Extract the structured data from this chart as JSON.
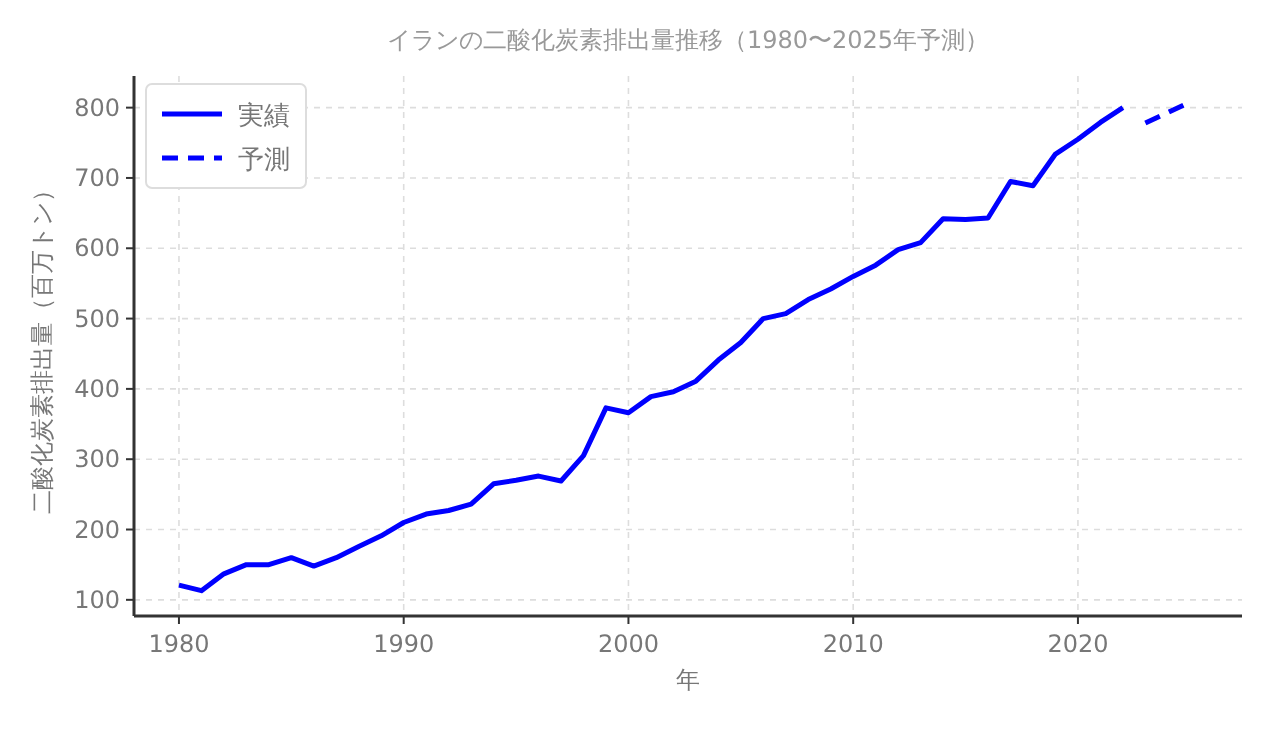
{
  "chart_data": {
    "type": "line",
    "title": "イランの二酸化炭素排出量推移（1980〜2025年予測）",
    "xlabel": "年",
    "ylabel": "二酸化炭素排出量（百万トン）",
    "series": [
      {
        "name": "実績",
        "color": "#0000ff",
        "line_style": "solid",
        "x": [
          1980,
          1981,
          1982,
          1983,
          1984,
          1985,
          1986,
          1987,
          1988,
          1989,
          1990,
          1991,
          1992,
          1993,
          1994,
          1995,
          1996,
          1997,
          1998,
          1999,
          2000,
          2001,
          2002,
          2003,
          2004,
          2005,
          2006,
          2007,
          2008,
          2009,
          2010,
          2011,
          2012,
          2013,
          2014,
          2015,
          2016,
          2017,
          2018,
          2019,
          2020,
          2021,
          2022
        ],
        "values": [
          121,
          113,
          137,
          150,
          150,
          160,
          148,
          160,
          176,
          191,
          210,
          222,
          227,
          236,
          265,
          270,
          276,
          269,
          305,
          373,
          366,
          389,
          396,
          411,
          441,
          466,
          500,
          507,
          527,
          542,
          560,
          576,
          598,
          608,
          642,
          641,
          643,
          695,
          689,
          734,
          755,
          779,
          800
        ]
      },
      {
        "name": "予測",
        "color": "#0000ff",
        "line_style": "dashed",
        "x": [
          2023,
          2024,
          2025
        ],
        "values": [
          778,
          793,
          808
        ]
      }
    ],
    "xlim": [
      1978,
      2027.3
    ],
    "ylim": [
      77,
      845
    ],
    "xticks": [
      1980,
      1990,
      2000,
      2010,
      2020
    ],
    "yticks": [
      100,
      200,
      300,
      400,
      500,
      600,
      700,
      800
    ],
    "grid": true,
    "legend": "top left",
    "marker": "none"
  }
}
